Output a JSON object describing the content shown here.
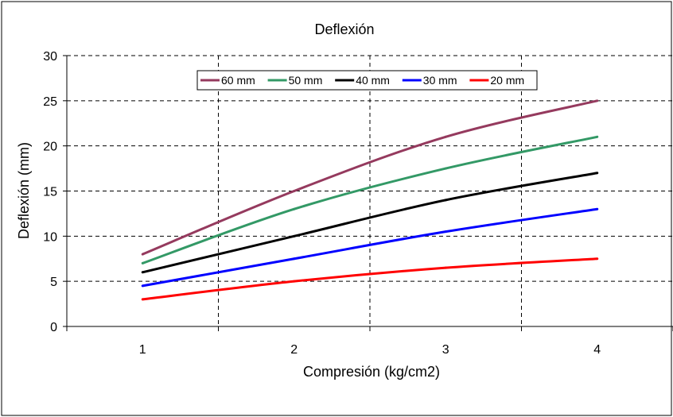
{
  "chart_data": {
    "type": "line",
    "title": "Deflexión",
    "xlabel": "Compresión (kg/cm2)",
    "ylabel": "Deflexión (mm)",
    "xlim": [
      0.5,
      4.5
    ],
    "ylim": [
      0,
      30
    ],
    "x": [
      1,
      2,
      3,
      4
    ],
    "x_ticks": [
      "1",
      "2",
      "3",
      "4"
    ],
    "y_ticks": [
      "0",
      "5",
      "10",
      "15",
      "20",
      "25",
      "30"
    ],
    "grid": true,
    "grid_style": "dashed",
    "legend_position": "top",
    "smooth": true,
    "series": [
      {
        "name": "60 mm",
        "color": "#953A5E",
        "values": [
          8,
          15,
          21,
          25
        ]
      },
      {
        "name": "50 mm",
        "color": "#339966",
        "values": [
          7,
          13,
          17.5,
          21
        ]
      },
      {
        "name": "40 mm",
        "color": "#000000",
        "values": [
          6,
          10,
          14,
          17
        ]
      },
      {
        "name": "30 mm",
        "color": "#0000FF",
        "values": [
          4.5,
          7.5,
          10.5,
          13
        ]
      },
      {
        "name": "20 mm",
        "color": "#FF0000",
        "values": [
          3,
          5,
          6.5,
          7.5
        ]
      }
    ]
  }
}
